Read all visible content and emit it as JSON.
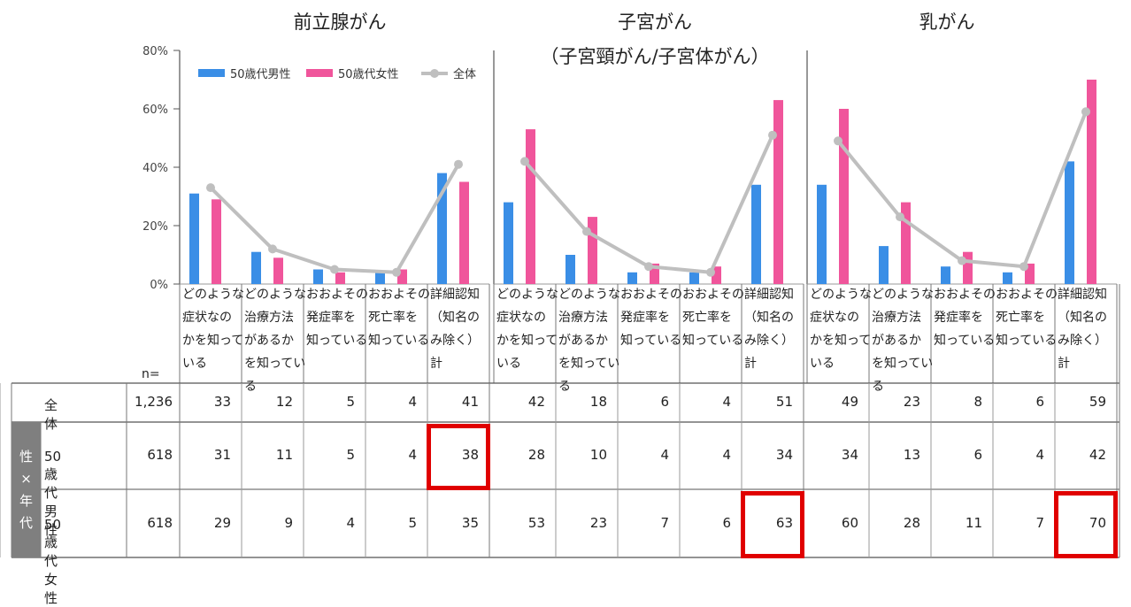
{
  "chart_data": {
    "type": "bar",
    "y_axis": {
      "ticks": [
        "0%",
        "20%",
        "40%",
        "60%",
        "80%"
      ],
      "ylim": [
        0,
        80
      ]
    },
    "legend": {
      "placement": "top-left",
      "entries": [
        {
          "name": "50歳代男性",
          "color": "#3a8ee6",
          "kind": "bar"
        },
        {
          "name": "50歳代女性",
          "color": "#f0559b",
          "kind": "bar"
        },
        {
          "name": "全体",
          "color": "#bfbfbf",
          "kind": "line"
        }
      ]
    },
    "categories": [
      "どのような症状なのかを知っている",
      "どのような治療方法があるかを知っている",
      "おおよその発症率を知っている",
      "おおよその死亡率を知っている",
      "詳細認知（知名のみ除く）計"
    ],
    "category_labels": [
      "どのような\n症状なの\nかを知って\nいる",
      "どのような\n治療方法\nがあるか\nを知ってい\nる",
      "おおよその\n発症率を\n知っている",
      "おおよその\n死亡率を\n知っている",
      "詳細認知\n（知名の\nみ除く）\n計"
    ],
    "panels": [
      {
        "title": "前立腺がん",
        "subtitle": "",
        "series": [
          {
            "name": "50歳代男性",
            "values": [
              31,
              11,
              5,
              4,
              38
            ]
          },
          {
            "name": "50歳代女性",
            "values": [
              29,
              9,
              4,
              5,
              35
            ]
          },
          {
            "name": "全体",
            "values": [
              33,
              12,
              5,
              4,
              41
            ]
          }
        ]
      },
      {
        "title": "子宮がん",
        "subtitle": "（子宮頸がん/子宮体がん）",
        "series": [
          {
            "name": "50歳代男性",
            "values": [
              28,
              10,
              4,
              4,
              34
            ]
          },
          {
            "name": "50歳代女性",
            "values": [
              53,
              23,
              7,
              6,
              63
            ]
          },
          {
            "name": "全体",
            "values": [
              42,
              18,
              6,
              4,
              51
            ]
          }
        ]
      },
      {
        "title": "乳がん",
        "subtitle": "",
        "series": [
          {
            "name": "50歳代男性",
            "values": [
              34,
              13,
              6,
              4,
              42
            ]
          },
          {
            "name": "50歳代女性",
            "values": [
              60,
              28,
              11,
              7,
              70
            ]
          },
          {
            "name": "全体",
            "values": [
              49,
              23,
              8,
              6,
              59
            ]
          }
        ]
      }
    ]
  },
  "table": {
    "n_label": "n=",
    "group_label": [
      "性",
      "×",
      "年",
      "代"
    ],
    "rows": [
      {
        "label": "全体",
        "n": "1,236",
        "values": [
          [
            "33",
            "12",
            "5",
            "4",
            "41"
          ],
          [
            "42",
            "18",
            "6",
            "4",
            "51"
          ],
          [
            "49",
            "23",
            "8",
            "6",
            "59"
          ]
        ]
      },
      {
        "label": "50歳代男性",
        "n": "618",
        "values": [
          [
            "31",
            "11",
            "5",
            "4",
            "38"
          ],
          [
            "28",
            "10",
            "4",
            "4",
            "34"
          ],
          [
            "34",
            "13",
            "6",
            "4",
            "42"
          ]
        ]
      },
      {
        "label": "50歳代女性",
        "n": "618",
        "values": [
          [
            "29",
            "9",
            "4",
            "5",
            "35"
          ],
          [
            "53",
            "23",
            "7",
            "6",
            "63"
          ],
          [
            "60",
            "28",
            "11",
            "7",
            "70"
          ]
        ]
      }
    ],
    "highlighted": [
      {
        "row": 1,
        "panel": 0,
        "col": 4
      },
      {
        "row": 2,
        "panel": 1,
        "col": 4
      },
      {
        "row": 2,
        "panel": 2,
        "col": 4
      }
    ],
    "highlight_color": "#e00000"
  }
}
